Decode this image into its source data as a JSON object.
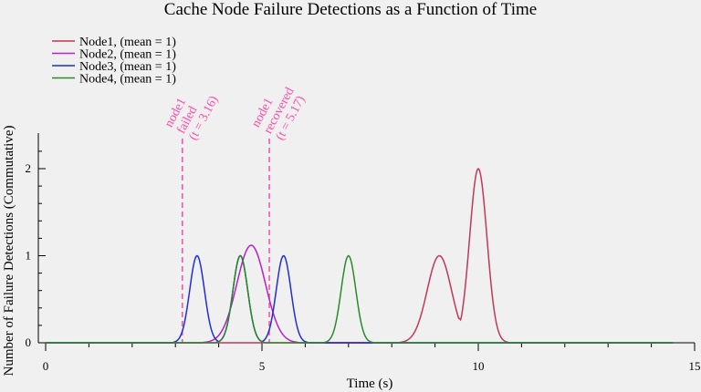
{
  "chart_data": {
    "type": "line",
    "title": "Cache Node Failure Detections as a Function of Time",
    "xlabel": "Time (s)",
    "ylabel": "Number of Failure Detections (Commutative)",
    "xlim": [
      0,
      15
    ],
    "ylim": [
      0,
      2.4
    ],
    "xticks": [
      0,
      5,
      10,
      15
    ],
    "yticks": [
      0,
      1,
      2
    ],
    "legend_position": "top-left",
    "background": "#f0f0f0",
    "series": [
      {
        "name": "Node1, (mean = 1)",
        "color": "#c0395a",
        "bumps": [
          {
            "center": 9.1,
            "amp": 1.0,
            "sigma": 0.28
          },
          {
            "center": 10.0,
            "amp": 2.0,
            "sigma": 0.2
          },
          {
            "center": 9.55,
            "amp": 0.28,
            "sigma": 0.12
          }
        ],
        "points": [
          [
            8.5,
            0
          ],
          [
            9.1,
            1.05
          ],
          [
            9.5,
            0.98
          ],
          [
            10.0,
            2.0
          ],
          [
            10.5,
            0
          ]
        ]
      },
      {
        "name": "Node2, (mean = 1)",
        "color": "#b81fc7",
        "bumps": [
          {
            "center": 4.75,
            "amp": 1.12,
            "sigma": 0.33
          }
        ],
        "points": [
          [
            4.0,
            0
          ],
          [
            4.75,
            1.12
          ],
          [
            5.5,
            0
          ]
        ]
      },
      {
        "name": "Node3, (mean = 1)",
        "color": "#1f2fd1",
        "bumps": [
          {
            "center": 3.5,
            "amp": 1.0,
            "sigma": 0.17
          },
          {
            "center": 4.5,
            "amp": 1.0,
            "sigma": 0.17
          },
          {
            "center": 5.5,
            "amp": 1.0,
            "sigma": 0.17
          }
        ],
        "points": [
          [
            3.0,
            0
          ],
          [
            3.5,
            1
          ],
          [
            4.0,
            0
          ],
          [
            4.5,
            1
          ],
          [
            5.0,
            0
          ],
          [
            5.5,
            1
          ],
          [
            6.0,
            0
          ]
        ]
      },
      {
        "name": "Node4, (mean = 1)",
        "color": "#2a8a2a",
        "bumps": [
          {
            "center": 4.5,
            "amp": 1.0,
            "sigma": 0.17
          },
          {
            "center": 7.0,
            "amp": 1.0,
            "sigma": 0.17
          }
        ],
        "points": [
          [
            4.0,
            0
          ],
          [
            4.5,
            1
          ],
          [
            5.0,
            0
          ],
          [
            6.5,
            0
          ],
          [
            7.0,
            1
          ],
          [
            7.5,
            0
          ]
        ]
      }
    ],
    "annotations": [
      {
        "x": 3.16,
        "lines": [
          "node1",
          "failed",
          "(t = 3.16)"
        ],
        "color": "#ff4aa6"
      },
      {
        "x": 5.17,
        "lines": [
          "node1",
          "recovered",
          "(t = 5.17)"
        ],
        "color": "#ff4aa6"
      }
    ]
  }
}
